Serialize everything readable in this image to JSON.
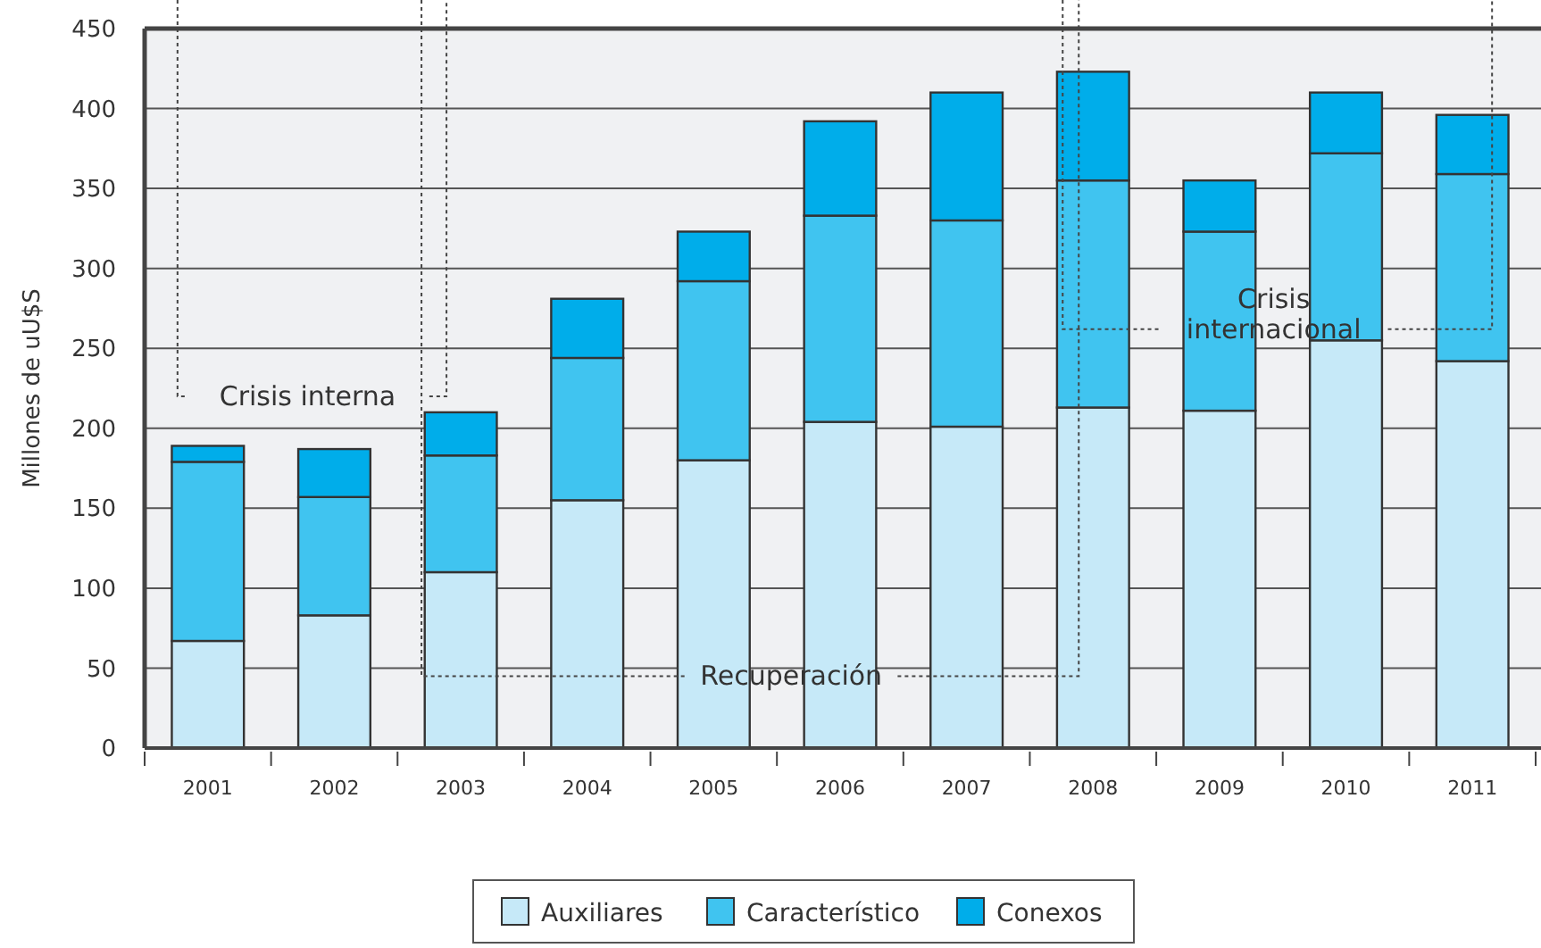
{
  "chart_data": {
    "type": "bar",
    "stacked": true,
    "ylabel": "Millones de uU$S",
    "categories": [
      "2001",
      "2002",
      "2003",
      "2004",
      "2005",
      "2006",
      "2007",
      "2008",
      "2009",
      "2010",
      "2011"
    ],
    "series": [
      {
        "name": "Auxiliares",
        "color": "#c6e9f8",
        "values": [
          67,
          83,
          110,
          155,
          180,
          204,
          201,
          213,
          211,
          255,
          242
        ]
      },
      {
        "name": "Característico",
        "color": "#40c4f0",
        "values": [
          112,
          74,
          73,
          89,
          112,
          129,
          129,
          142,
          112,
          117,
          117
        ]
      },
      {
        "name": "Conexos",
        "color": "#00adea",
        "values": [
          10,
          30,
          27,
          37,
          31,
          59,
          80,
          68,
          32,
          38,
          37
        ]
      }
    ],
    "ylim": [
      0,
      450
    ],
    "yticks": [
      0,
      50,
      100,
      150,
      200,
      250,
      300,
      350,
      400,
      450
    ],
    "grid": "y",
    "legend": "bottom",
    "annotations": [
      "Crisis interna",
      "Recuperación",
      "Crisis\ninternacional"
    ]
  }
}
